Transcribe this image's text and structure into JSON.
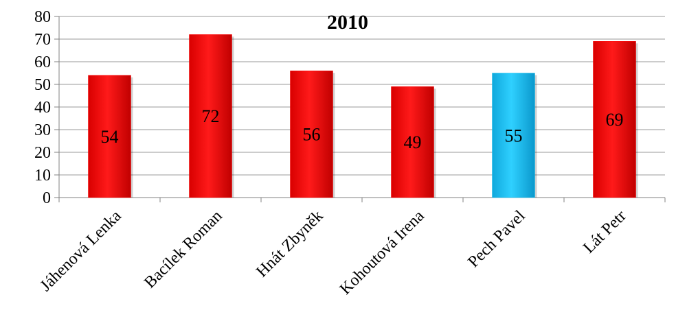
{
  "chart_data": {
    "type": "bar",
    "title": "2010",
    "categories": [
      "Jáhenová Lenka",
      "Bacílek Roman",
      "Hnát Zbyněk",
      "Kohoutová Irena",
      "Pech Pavel",
      "Lát Petr"
    ],
    "values": [
      54,
      72,
      56,
      49,
      55,
      69
    ],
    "highlight_index": 4,
    "colors": {
      "default": "#ff0000",
      "highlight": "#19c0f0",
      "grid": "#999999"
    },
    "ylim": [
      0,
      80
    ],
    "yticks": [
      0,
      10,
      20,
      30,
      40,
      50,
      60,
      70,
      80
    ],
    "grid": true,
    "legend": "none",
    "xlabel": "",
    "ylabel": ""
  }
}
